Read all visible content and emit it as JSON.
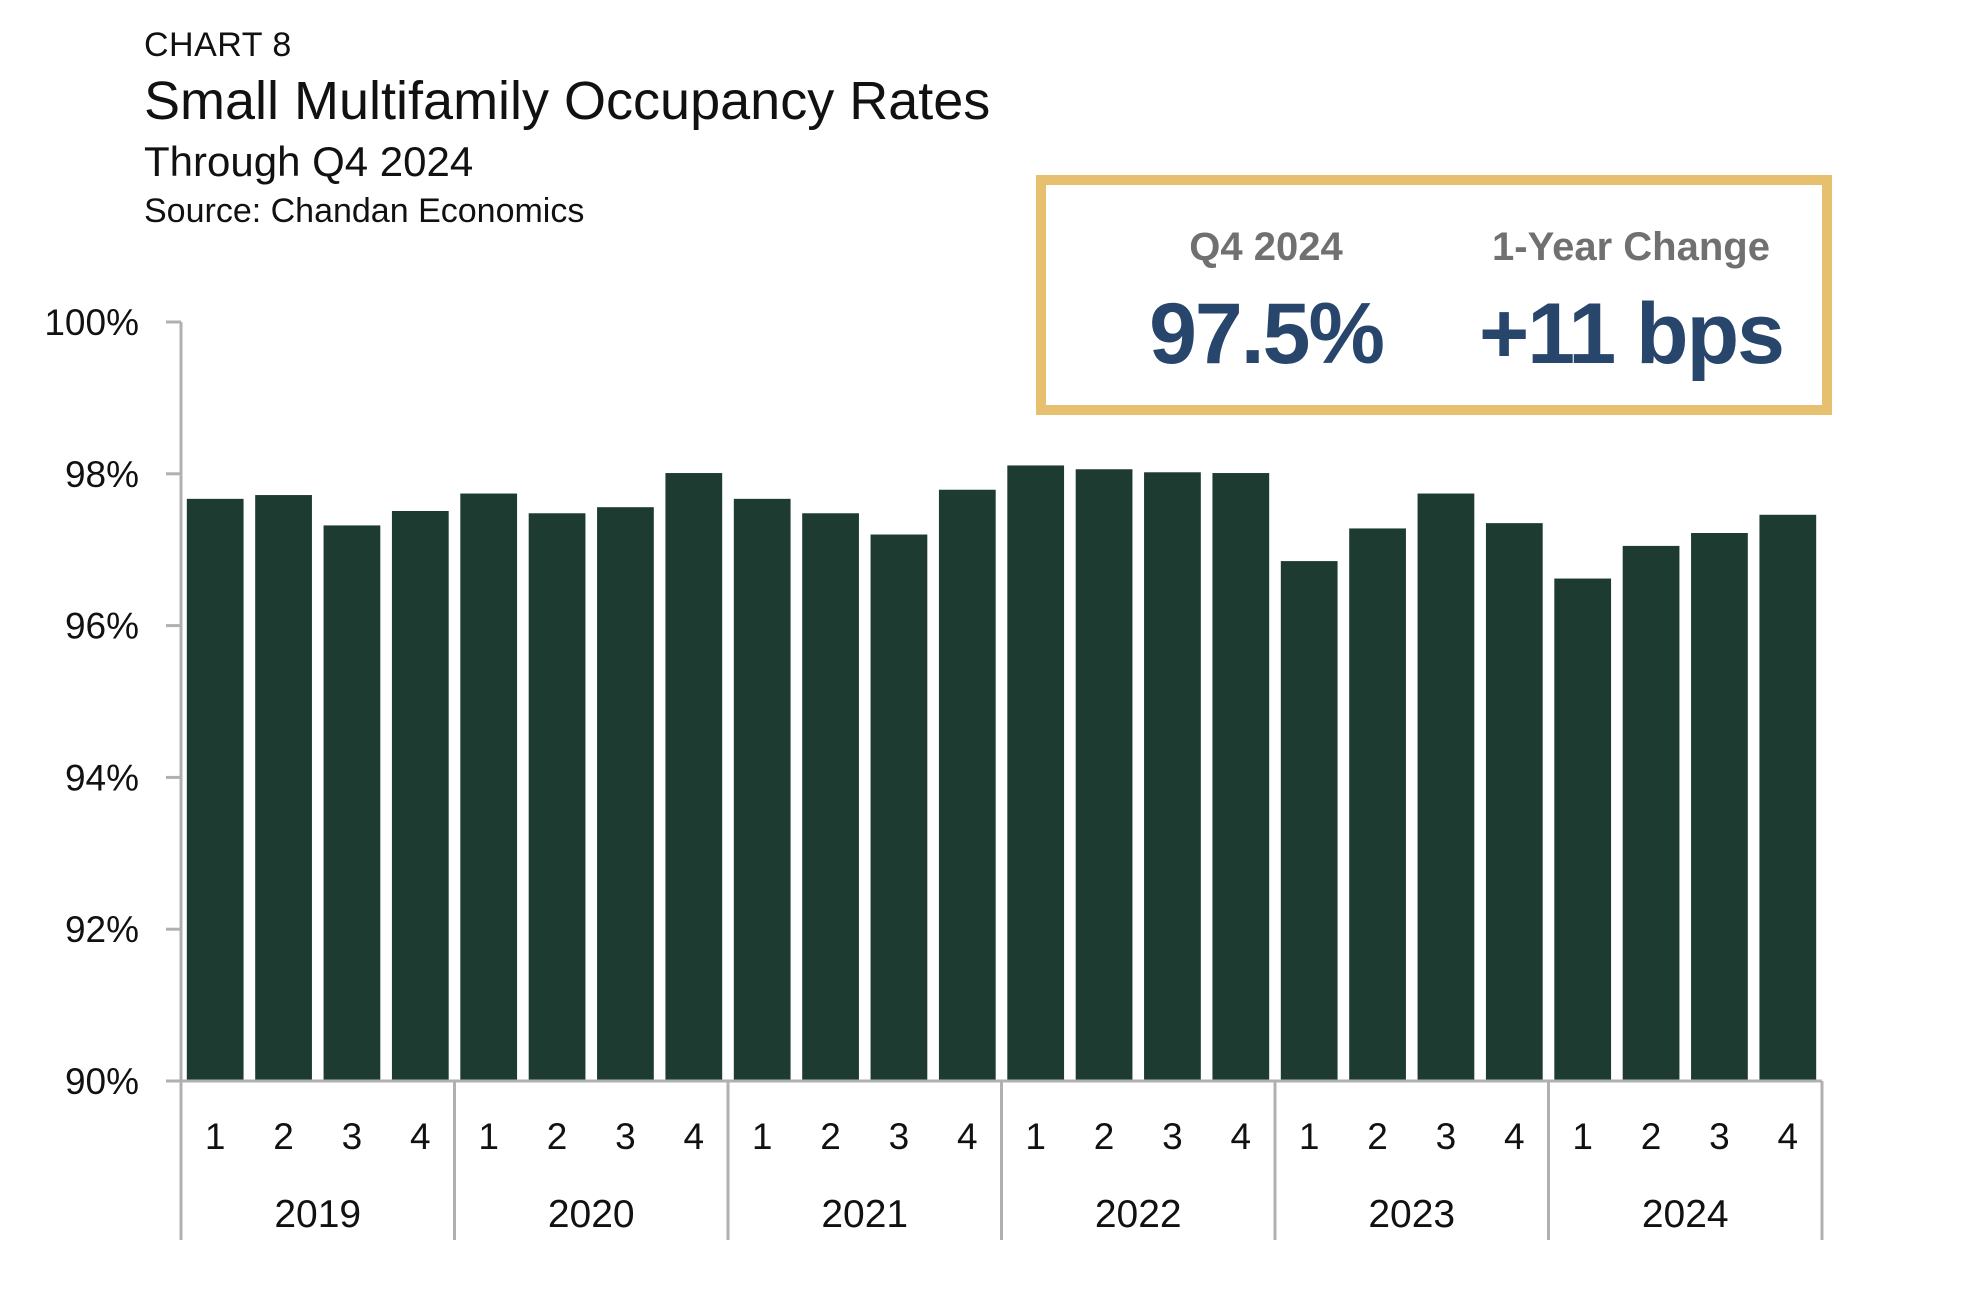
{
  "header": {
    "label": "CHART 8",
    "title": "Small Multifamily Occupancy Rates",
    "subtitle": "Through Q4 2024",
    "source": "Source: Chandan Economics"
  },
  "kpis": [
    {
      "label": "Q4 2024",
      "value": "97.5%"
    },
    {
      "label": "1-Year Change",
      "value": "+11 bps"
    }
  ],
  "colors": {
    "bar": "#1e3b32",
    "axis": "#b0b0b0",
    "kpi_border": "#e6c06f",
    "kpi_value": "#28466c",
    "kpi_label": "#707070"
  },
  "chart_data": {
    "type": "bar",
    "title": "Small Multifamily Occupancy Rates",
    "subtitle": "Through Q4 2024",
    "quarters": [
      "1",
      "2",
      "3",
      "4",
      "1",
      "2",
      "3",
      "4",
      "1",
      "2",
      "3",
      "4",
      "1",
      "2",
      "3",
      "4",
      "1",
      "2",
      "3",
      "4",
      "1",
      "2",
      "3",
      "4"
    ],
    "years": [
      "2019",
      "2020",
      "2021",
      "2022",
      "2023",
      "2024"
    ],
    "values": [
      97.67,
      97.72,
      97.32,
      97.51,
      97.74,
      97.48,
      97.56,
      98.01,
      97.67,
      97.48,
      97.2,
      97.79,
      98.11,
      98.06,
      98.02,
      98.01,
      96.85,
      97.28,
      97.74,
      97.35,
      96.62,
      97.05,
      97.22,
      97.46
    ],
    "ylim": [
      90,
      100
    ],
    "yticks": [
      90,
      92,
      94,
      96,
      98,
      100
    ],
    "ytick_labels": [
      "90%",
      "92%",
      "94%",
      "96%",
      "98%",
      "100%"
    ],
    "grid": false,
    "legend": "none"
  }
}
